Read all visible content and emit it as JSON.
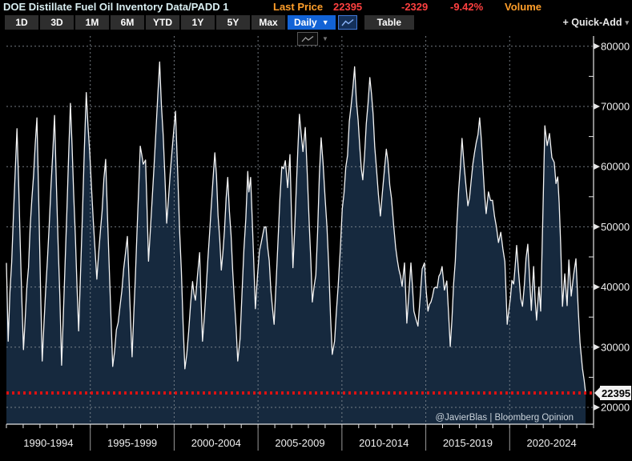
{
  "header": {
    "title": "DOE Distillate Fuel Oil Inventory Data/PADD 1",
    "last_price_label": "Last Price",
    "last_price": "22395",
    "change": "-2329",
    "change_pct": "-9.42%",
    "volume_label": "Volume"
  },
  "toolbar": {
    "ranges": [
      "1D",
      "3D",
      "1M",
      "6M",
      "YTD",
      "1Y",
      "5Y",
      "Max"
    ],
    "frequency": "Daily",
    "table_label": "Table",
    "quick_add_label": "+ Quick-Add"
  },
  "icons": {
    "caret_down": "▼",
    "caret_small": "▾"
  },
  "watermark": "@JavierBlas | Bloomberg Opinion",
  "chart_data": {
    "type": "area",
    "title": "DOE Distillate Fuel Oil Inventory Data/PADD 1",
    "ylabel": "",
    "xlabel": "",
    "ylim": [
      20000,
      81500
    ],
    "y_ticks": [
      20000,
      30000,
      40000,
      50000,
      60000,
      70000,
      80000
    ],
    "y_minor_step": 5000,
    "x_sections": [
      "1990-1994",
      "1995-1999",
      "2000-2004",
      "2005-2009",
      "2010-2014",
      "2015-2019",
      "2020-2024"
    ],
    "grid": "dashed",
    "last_price": 22395,
    "colors": {
      "fill": "#16293e",
      "line": "#f5f5f5",
      "grid": "#868e96",
      "axis": "#e4e4e4",
      "price_line": "#dd1111",
      "tag_bg": "#f2f2f2",
      "tag_text": "#000000",
      "label": "#f0f0f0",
      "watermark": "#c9d2da"
    },
    "anchors": [
      [
        0.0,
        44000
      ],
      [
        0.003,
        31000
      ],
      [
        0.018,
        66300
      ],
      [
        0.029,
        29600
      ],
      [
        0.052,
        68100
      ],
      [
        0.061,
        27700
      ],
      [
        0.082,
        68500
      ],
      [
        0.094,
        27000
      ],
      [
        0.109,
        70500
      ],
      [
        0.123,
        32700
      ],
      [
        0.136,
        72300
      ],
      [
        0.154,
        41300
      ],
      [
        0.169,
        61200
      ],
      [
        0.181,
        26800
      ],
      [
        0.206,
        48400
      ],
      [
        0.214,
        28400
      ],
      [
        0.228,
        63400
      ],
      [
        0.233,
        60400
      ],
      [
        0.237,
        61100
      ],
      [
        0.242,
        44300
      ],
      [
        0.261,
        77400
      ],
      [
        0.273,
        50600
      ],
      [
        0.288,
        69200
      ],
      [
        0.292,
        58400
      ],
      [
        0.304,
        26400
      ],
      [
        0.317,
        40900
      ],
      [
        0.322,
        37800
      ],
      [
        0.329,
        45700
      ],
      [
        0.334,
        31000
      ],
      [
        0.355,
        62300
      ],
      [
        0.366,
        42800
      ],
      [
        0.377,
        58200
      ],
      [
        0.394,
        27700
      ],
      [
        0.398,
        31400
      ],
      [
        0.411,
        59200
      ],
      [
        0.413,
        55800
      ],
      [
        0.416,
        58200
      ],
      [
        0.424,
        36400
      ],
      [
        0.431,
        46000
      ],
      [
        0.442,
        50000
      ],
      [
        0.456,
        33800
      ],
      [
        0.469,
        60000
      ],
      [
        0.475,
        61000
      ],
      [
        0.479,
        56500
      ],
      [
        0.483,
        62000
      ],
      [
        0.488,
        43200
      ],
      [
        0.499,
        68700
      ],
      [
        0.505,
        62500
      ],
      [
        0.509,
        66500
      ],
      [
        0.516,
        50000
      ],
      [
        0.521,
        37500
      ],
      [
        0.527,
        42000
      ],
      [
        0.536,
        64800
      ],
      [
        0.546,
        50000
      ],
      [
        0.555,
        28800
      ],
      [
        0.559,
        31000
      ],
      [
        0.565,
        40000
      ],
      [
        0.572,
        53000
      ],
      [
        0.593,
        76600
      ],
      [
        0.602,
        63000
      ],
      [
        0.607,
        57800
      ],
      [
        0.619,
        74800
      ],
      [
        0.63,
        60000
      ],
      [
        0.637,
        51800
      ],
      [
        0.647,
        62900
      ],
      [
        0.656,
        54700
      ],
      [
        0.663,
        46500
      ],
      [
        0.674,
        40100
      ],
      [
        0.678,
        44000
      ],
      [
        0.682,
        34000
      ],
      [
        0.689,
        44000
      ],
      [
        0.694,
        36000
      ],
      [
        0.701,
        33500
      ],
      [
        0.708,
        43000
      ],
      [
        0.712,
        44000
      ],
      [
        0.718,
        36000
      ],
      [
        0.723,
        37500
      ],
      [
        0.731,
        40000
      ],
      [
        0.742,
        43400
      ],
      [
        0.746,
        39500
      ],
      [
        0.75,
        41000
      ],
      [
        0.756,
        30100
      ],
      [
        0.776,
        64700
      ],
      [
        0.786,
        53500
      ],
      [
        0.806,
        68100
      ],
      [
        0.817,
        52200
      ],
      [
        0.821,
        55800
      ],
      [
        0.828,
        54400
      ],
      [
        0.838,
        47400
      ],
      [
        0.842,
        49100
      ],
      [
        0.849,
        44200
      ],
      [
        0.853,
        33800
      ],
      [
        0.861,
        41100
      ],
      [
        0.864,
        40500
      ],
      [
        0.869,
        46900
      ],
      [
        0.876,
        38100
      ],
      [
        0.879,
        36800
      ],
      [
        0.888,
        47100
      ],
      [
        0.894,
        36100
      ],
      [
        0.898,
        43400
      ],
      [
        0.903,
        34500
      ],
      [
        0.907,
        40000
      ],
      [
        0.91,
        36000
      ],
      [
        0.917,
        66800
      ],
      [
        0.921,
        63500
      ],
      [
        0.925,
        65500
      ],
      [
        0.929,
        61500
      ],
      [
        0.933,
        60700
      ],
      [
        0.936,
        57200
      ],
      [
        0.939,
        58300
      ],
      [
        0.944,
        46900
      ],
      [
        0.947,
        36800
      ],
      [
        0.951,
        42200
      ],
      [
        0.955,
        36900
      ],
      [
        0.958,
        44500
      ],
      [
        0.962,
        38500
      ],
      [
        0.966,
        42000
      ],
      [
        0.97,
        44700
      ],
      [
        0.974,
        36200
      ],
      [
        0.977,
        30800
      ],
      [
        0.981,
        26500
      ],
      [
        0.984,
        24500
      ],
      [
        0.9865,
        22395
      ]
    ]
  }
}
